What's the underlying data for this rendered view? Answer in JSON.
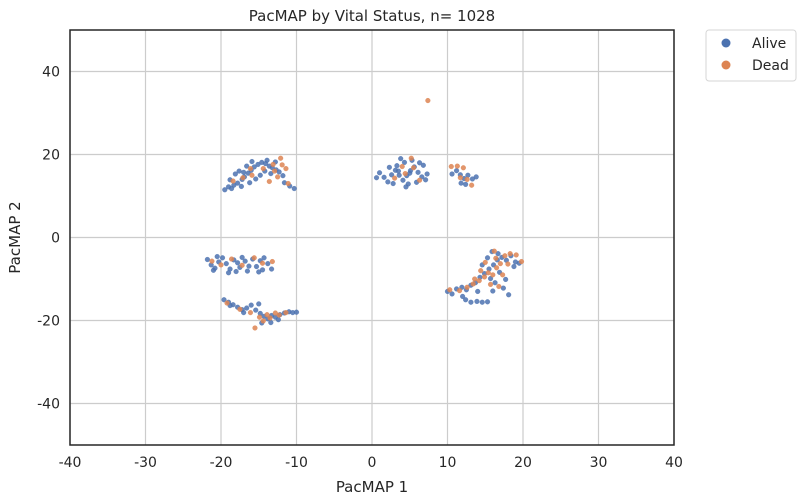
{
  "chart_data": {
    "type": "scatter",
    "title": "PacMAP by Vital Status, n= 1028",
    "xlabel": "PacMAP 1",
    "ylabel": "PacMAP 2",
    "xlim": [
      -40,
      40
    ],
    "ylim": [
      -50,
      50
    ],
    "xticks": [
      -40,
      -30,
      -20,
      -10,
      0,
      10,
      20,
      30,
      40
    ],
    "yticks": [
      -40,
      -20,
      0,
      20,
      40
    ],
    "grid": true,
    "legend_position": "outside-top-right",
    "series": [
      {
        "name": "Alive",
        "color": "#4c72b0",
        "points": [
          [
            -19.5,
            11.5
          ],
          [
            -19.0,
            12.2
          ],
          [
            -18.6,
            11.8
          ],
          [
            -18.3,
            12.6
          ],
          [
            -17.8,
            13.1
          ],
          [
            -17.2,
            14.0
          ],
          [
            -16.9,
            14.6
          ],
          [
            -16.4,
            15.5
          ],
          [
            -16.0,
            16.2
          ],
          [
            -15.6,
            17.0
          ],
          [
            -15.1,
            17.6
          ],
          [
            -14.6,
            18.1
          ],
          [
            -14.1,
            17.8
          ],
          [
            -13.6,
            17.2
          ],
          [
            -13.2,
            16.8
          ],
          [
            -12.7,
            16.3
          ],
          [
            -12.3,
            15.8
          ],
          [
            -11.8,
            14.9
          ],
          [
            -18.1,
            15.3
          ],
          [
            -17.6,
            16.0
          ],
          [
            -17.0,
            15.7
          ],
          [
            -16.2,
            13.2
          ],
          [
            -15.4,
            14.1
          ],
          [
            -14.8,
            15.0
          ],
          [
            -14.2,
            16.0
          ],
          [
            -13.4,
            15.4
          ],
          [
            -12.8,
            18.2
          ],
          [
            -11.6,
            13.2
          ],
          [
            -10.9,
            12.4
          ],
          [
            -10.3,
            11.8
          ],
          [
            -16.6,
            17.2
          ],
          [
            -15.9,
            18.3
          ],
          [
            -13.9,
            18.6
          ],
          [
            -18.8,
            13.9
          ],
          [
            -17.3,
            12.3
          ],
          [
            -21.8,
            -5.3
          ],
          [
            -21.3,
            -6.6
          ],
          [
            -20.8,
            -7.4
          ],
          [
            -20.3,
            -5.9
          ],
          [
            -19.8,
            -4.9
          ],
          [
            -19.3,
            -6.3
          ],
          [
            -18.8,
            -7.6
          ],
          [
            -18.3,
            -5.4
          ],
          [
            -17.8,
            -6.1
          ],
          [
            -17.2,
            -4.8
          ],
          [
            -16.8,
            -5.7
          ],
          [
            -16.3,
            -6.9
          ],
          [
            -15.8,
            -5.2
          ],
          [
            -15.3,
            -7.0
          ],
          [
            -14.8,
            -5.6
          ],
          [
            -14.3,
            -4.9
          ],
          [
            -13.8,
            -6.3
          ],
          [
            -13.3,
            -7.6
          ],
          [
            -18.0,
            -8.2
          ],
          [
            -16.5,
            -8.1
          ],
          [
            -20.5,
            -4.6
          ],
          [
            -19.0,
            -8.5
          ],
          [
            -15.0,
            -8.3
          ],
          [
            -21.0,
            -7.9
          ],
          [
            -17.5,
            -7.2
          ],
          [
            -14.5,
            -7.8
          ],
          [
            -19.6,
            -15.0
          ],
          [
            -19.0,
            -15.6
          ],
          [
            -18.4,
            -16.2
          ],
          [
            -17.8,
            -16.8
          ],
          [
            -17.2,
            -17.4
          ],
          [
            -16.6,
            -17.0
          ],
          [
            -16.0,
            -16.3
          ],
          [
            -15.4,
            -17.5
          ],
          [
            -14.8,
            -18.3
          ],
          [
            -14.3,
            -19.0
          ],
          [
            -13.8,
            -19.6
          ],
          [
            -13.3,
            -18.8
          ],
          [
            -12.8,
            -19.2
          ],
          [
            -12.2,
            -18.6
          ],
          [
            -11.6,
            -18.2
          ],
          [
            -11.0,
            -17.9
          ],
          [
            -10.5,
            -18.1
          ],
          [
            -10.0,
            -18.0
          ],
          [
            -15.0,
            -16.0
          ],
          [
            -14.6,
            -20.6
          ],
          [
            -13.4,
            -20.5
          ],
          [
            -12.4,
            -19.8
          ],
          [
            -18.8,
            -16.4
          ],
          [
            -17.0,
            -18.1
          ],
          [
            1.0,
            15.6
          ],
          [
            1.6,
            14.5
          ],
          [
            2.1,
            13.4
          ],
          [
            2.6,
            15.1
          ],
          [
            3.1,
            16.2
          ],
          [
            3.6,
            15.0
          ],
          [
            4.1,
            13.8
          ],
          [
            4.6,
            14.9
          ],
          [
            5.1,
            16.1
          ],
          [
            5.6,
            17.0
          ],
          [
            6.1,
            15.7
          ],
          [
            6.6,
            14.6
          ],
          [
            7.1,
            13.9
          ],
          [
            3.3,
            17.3
          ],
          [
            4.3,
            18.1
          ],
          [
            5.3,
            18.6
          ],
          [
            6.3,
            18.0
          ],
          [
            2.3,
            16.9
          ],
          [
            4.8,
            12.9
          ],
          [
            5.9,
            13.3
          ],
          [
            0.6,
            14.4
          ],
          [
            7.3,
            15.3
          ],
          [
            3.8,
            19.0
          ],
          [
            6.8,
            17.4
          ],
          [
            4.5,
            12.2
          ],
          [
            2.8,
            13.0
          ],
          [
            5.0,
            15.5
          ],
          [
            3.5,
            16.0
          ],
          [
            10.6,
            15.3
          ],
          [
            11.2,
            16.1
          ],
          [
            11.7,
            15.1
          ],
          [
            12.2,
            14.2
          ],
          [
            12.7,
            15.0
          ],
          [
            13.3,
            14.1
          ],
          [
            13.8,
            14.6
          ],
          [
            11.8,
            13.1
          ],
          [
            12.4,
            12.8
          ],
          [
            10.0,
            -13.0
          ],
          [
            10.6,
            -13.6
          ],
          [
            11.2,
            -12.4
          ],
          [
            11.9,
            -12.0
          ],
          [
            12.5,
            -12.6
          ],
          [
            13.1,
            -11.5
          ],
          [
            13.7,
            -10.9
          ],
          [
            14.3,
            -9.6
          ],
          [
            14.9,
            -8.7
          ],
          [
            15.5,
            -7.6
          ],
          [
            16.1,
            -6.6
          ],
          [
            16.6,
            -5.4
          ],
          [
            17.2,
            -4.8
          ],
          [
            17.8,
            -5.5
          ],
          [
            18.4,
            -4.4
          ],
          [
            19.0,
            -5.9
          ],
          [
            15.7,
            -9.9
          ],
          [
            16.3,
            -10.9
          ],
          [
            16.9,
            -8.4
          ],
          [
            14.6,
            -6.6
          ],
          [
            15.3,
            -4.9
          ],
          [
            13.1,
            -15.6
          ],
          [
            13.9,
            -15.4
          ],
          [
            14.6,
            -15.6
          ],
          [
            15.3,
            -15.5
          ],
          [
            12.4,
            -15.0
          ],
          [
            17.4,
            -12.2
          ],
          [
            18.1,
            -13.8
          ],
          [
            16.0,
            -12.9
          ],
          [
            17.7,
            -10.1
          ],
          [
            18.8,
            -7.0
          ],
          [
            16.7,
            -3.9
          ],
          [
            14.0,
            -13.0
          ],
          [
            12.0,
            -14.2
          ],
          [
            19.5,
            -6.2
          ],
          [
            15.9,
            -3.4
          ]
        ]
      },
      {
        "name": "Dead",
        "color": "#dd8452",
        "points": [
          [
            -18.4,
            13.6
          ],
          [
            -17.1,
            14.4
          ],
          [
            -15.9,
            15.0
          ],
          [
            -14.4,
            16.6
          ],
          [
            -13.1,
            17.6
          ],
          [
            -12.1,
            19.1
          ],
          [
            -11.4,
            16.6
          ],
          [
            -12.5,
            14.6
          ],
          [
            -11.1,
            13.0
          ],
          [
            -13.6,
            13.5
          ],
          [
            -16.1,
            16.6
          ],
          [
            -12.9,
            16.0
          ],
          [
            -11.9,
            17.5
          ],
          [
            -21.2,
            -5.7
          ],
          [
            -20.0,
            -6.6
          ],
          [
            -18.6,
            -5.2
          ],
          [
            -17.2,
            -6.7
          ],
          [
            -15.6,
            -4.9
          ],
          [
            -14.5,
            -6.2
          ],
          [
            -13.2,
            -5.8
          ],
          [
            -19.2,
            -15.8
          ],
          [
            -17.5,
            -17.3
          ],
          [
            -16.1,
            -18.1
          ],
          [
            -14.9,
            -19.2
          ],
          [
            -13.9,
            -18.6
          ],
          [
            -12.8,
            -18.2
          ],
          [
            -11.4,
            -18.1
          ],
          [
            -15.5,
            -21.8
          ],
          [
            -14.4,
            -20.1
          ],
          [
            -13.5,
            -19.4
          ],
          [
            -12.3,
            -18.7
          ],
          [
            3.0,
            14.3
          ],
          [
            4.4,
            15.4
          ],
          [
            5.5,
            16.8
          ],
          [
            6.3,
            13.8
          ],
          [
            4.0,
            17.1
          ],
          [
            5.2,
            19.1
          ],
          [
            7.4,
            33.0
          ],
          [
            10.5,
            17.1
          ],
          [
            11.3,
            17.2
          ],
          [
            12.1,
            16.8
          ],
          [
            12.6,
            14.0
          ],
          [
            13.2,
            12.6
          ],
          [
            11.7,
            14.4
          ],
          [
            10.3,
            -12.6
          ],
          [
            11.6,
            -12.8
          ],
          [
            12.6,
            -12.0
          ],
          [
            13.4,
            -11.2
          ],
          [
            14.2,
            -10.4
          ],
          [
            14.9,
            -9.5
          ],
          [
            15.4,
            -8.5
          ],
          [
            16.0,
            -9.0
          ],
          [
            16.5,
            -7.3
          ],
          [
            17.0,
            -6.3
          ],
          [
            17.6,
            -4.4
          ],
          [
            18.3,
            -3.9
          ],
          [
            19.1,
            -4.2
          ],
          [
            19.8,
            -5.8
          ],
          [
            16.2,
            -3.3
          ],
          [
            15.0,
            -6.0
          ],
          [
            15.7,
            -11.3
          ],
          [
            16.8,
            -11.8
          ],
          [
            17.3,
            -9.0
          ],
          [
            14.4,
            -8.0
          ],
          [
            13.6,
            -10.0
          ],
          [
            16.4,
            -5.0
          ],
          [
            18.0,
            -6.4
          ]
        ]
      }
    ]
  }
}
